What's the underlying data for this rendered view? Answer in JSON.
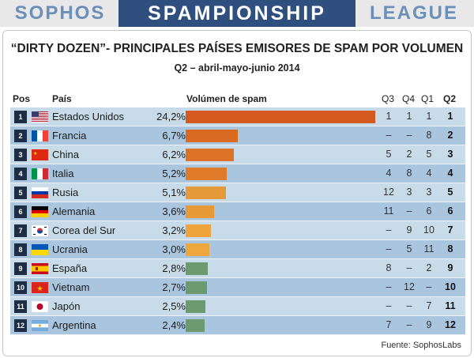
{
  "banner": {
    "left": "SOPHOS",
    "center": "SPAMPIONSHIP",
    "right": "LEAGUE"
  },
  "chart_data": {
    "type": "bar",
    "title": "“DIRTY DOZEN”- PRINCIPALES PAÍSES EMISORES DE SPAM POR VOLUMEN",
    "subtitle": "Q2 – abril-mayo-junio 2014",
    "columns": {
      "pos": "Pos",
      "country": "País",
      "volume": "Volúmen de spam",
      "q3": "Q3",
      "q4": "Q4",
      "q1": "Q1",
      "q2": "Q2"
    },
    "rows": [
      {
        "pos": "1",
        "country": "Estados Unidos",
        "value": 24.2,
        "label": "24,2%",
        "q3": "1",
        "q4": "1",
        "q1": "1",
        "q2": "1",
        "color": "#d55a1f",
        "flag": "us"
      },
      {
        "pos": "2",
        "country": "Francia",
        "value": 6.7,
        "label": "6,7%",
        "q3": "–",
        "q4": "–",
        "q1": "8",
        "q2": "2",
        "color": "#d86a22",
        "flag": "fr"
      },
      {
        "pos": "3",
        "country": "China",
        "value": 6.2,
        "label": "6,2%",
        "q3": "5",
        "q4": "2",
        "q1": "5",
        "q2": "3",
        "color": "#dc7326",
        "flag": "cn"
      },
      {
        "pos": "4",
        "country": "Italia",
        "value": 5.2,
        "label": "5,2%",
        "q3": "4",
        "q4": "8",
        "q1": "4",
        "q2": "4",
        "color": "#df7b2b",
        "flag": "it"
      },
      {
        "pos": "5",
        "country": "Rusia",
        "value": 5.1,
        "label": "5,1%",
        "q3": "12",
        "q4": "3",
        "q1": "3",
        "q2": "5",
        "color": "#e59a3a",
        "flag": "ru"
      },
      {
        "pos": "6",
        "country": "Alemania",
        "value": 3.6,
        "label": "3,6%",
        "q3": "11",
        "q4": "–",
        "q1": "6",
        "q2": "6",
        "color": "#e89a36",
        "flag": "de"
      },
      {
        "pos": "7",
        "country": "Corea del Sur",
        "value": 3.2,
        "label": "3,2%",
        "q3": "–",
        "q4": "9",
        "q1": "10",
        "q2": "7",
        "color": "#eea33c",
        "flag": "kr"
      },
      {
        "pos": "8",
        "country": "Ucrania",
        "value": 3.0,
        "label": "3,0%",
        "q3": "–",
        "q4": "5",
        "q1": "11",
        "q2": "8",
        "color": "#eea63e",
        "flag": "ua"
      },
      {
        "pos": "9",
        "country": "España",
        "value": 2.8,
        "label": "2,8%",
        "q3": "8",
        "q4": "–",
        "q1": "2",
        "q2": "9",
        "color": "#6e9a6f",
        "flag": "es"
      },
      {
        "pos": "10",
        "country": "Vietnam",
        "value": 2.7,
        "label": "2,7%",
        "q3": "–",
        "q4": "12",
        "q1": "–",
        "q2": "10",
        "color": "#6e9a6f",
        "flag": "vn"
      },
      {
        "pos": "11",
        "country": "Japón",
        "value": 2.5,
        "label": "2,5%",
        "q3": "–",
        "q4": "–",
        "q1": "7",
        "q2": "11",
        "color": "#6e9a6f",
        "flag": "jp"
      },
      {
        "pos": "12",
        "country": "Argentina",
        "value": 2.4,
        "label": "2,4%",
        "q3": "7",
        "q4": "–",
        "q1": "9",
        "q2": "12",
        "color": "#6e9a6f",
        "flag": "ar"
      }
    ]
  },
  "source": "Fuente: SophosLabs"
}
